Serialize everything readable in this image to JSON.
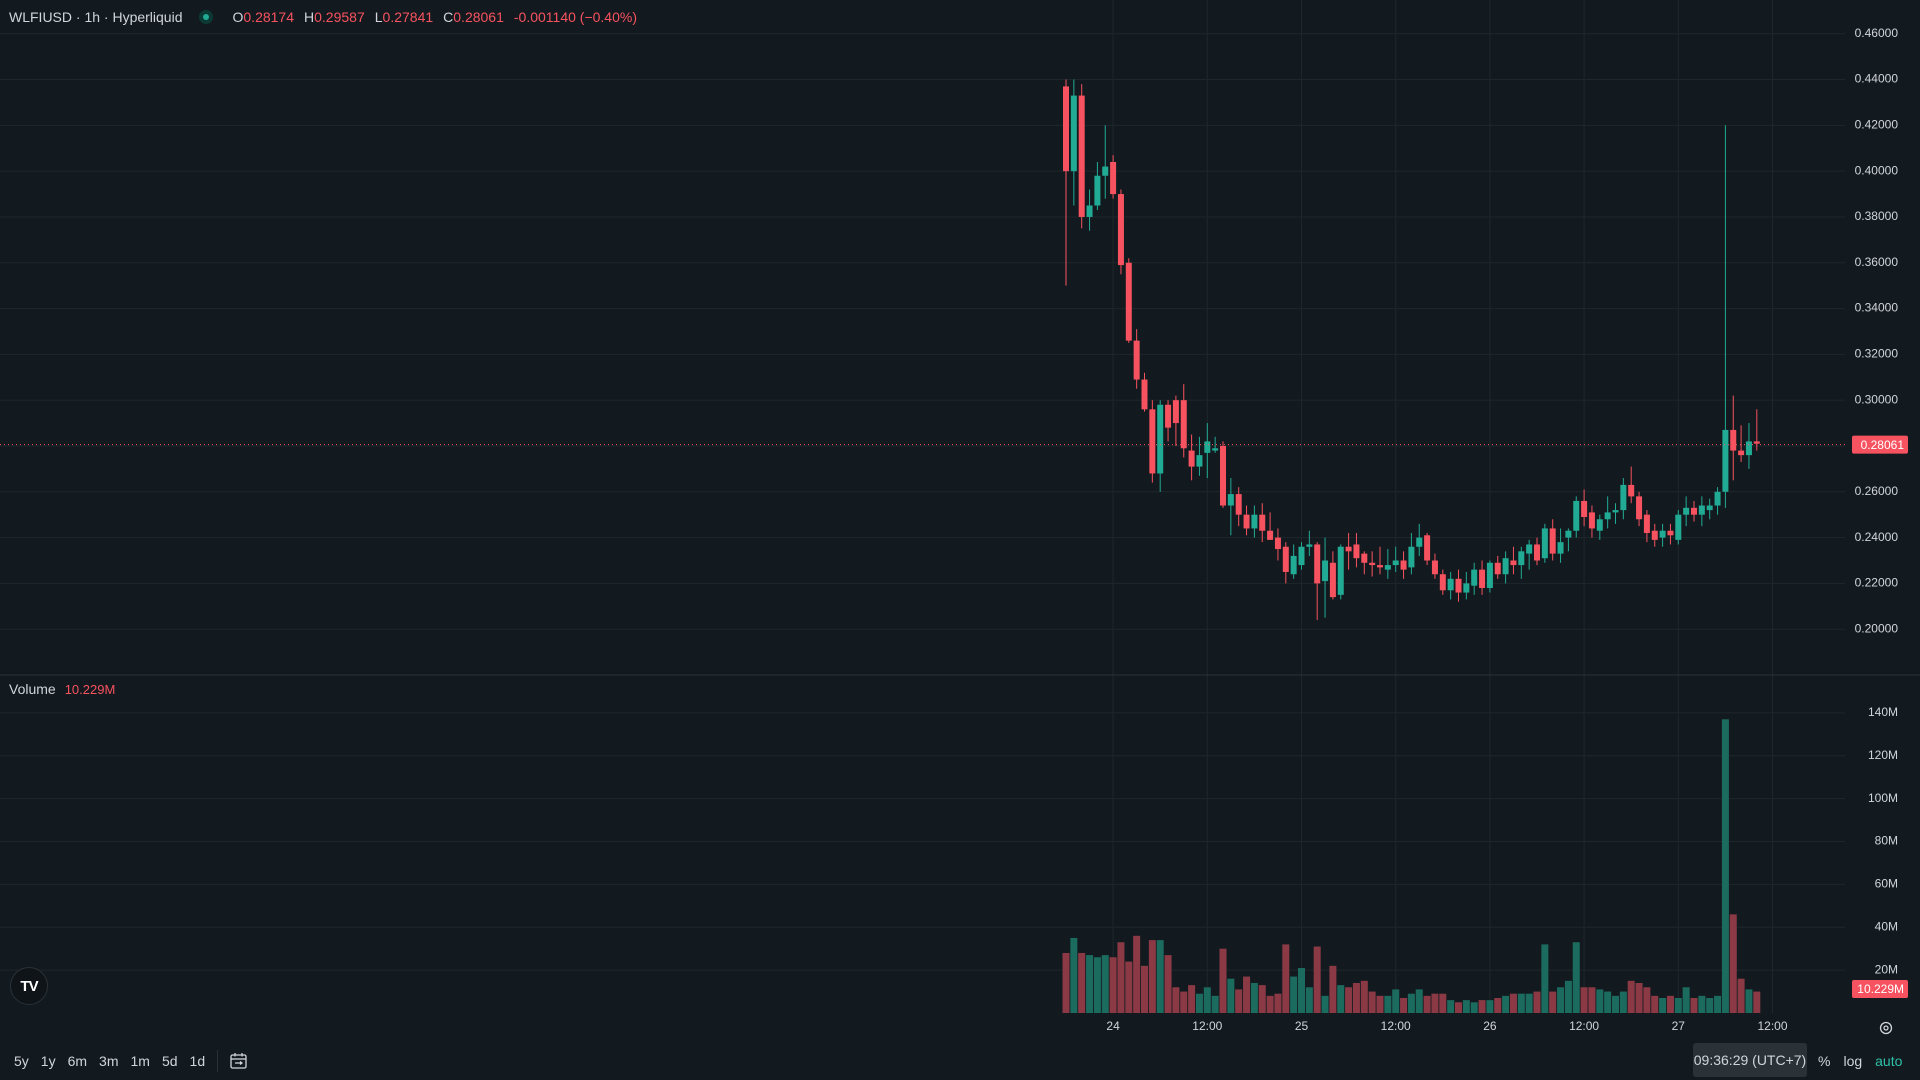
{
  "legend": {
    "symbol": "WLFIUSD · 1h · Hyperliquid",
    "o_label": "O",
    "o": "0.28174",
    "h_label": "H",
    "h": "0.29587",
    "l_label": "L",
    "l": "0.27841",
    "c_label": "C",
    "c": "0.28061",
    "change": "-0.001140 (−0.40%)"
  },
  "volume_legend": {
    "label": "Volume",
    "value": "10.229M"
  },
  "logo": {
    "text": "TV",
    "icon": "tradingview-logo-icon"
  },
  "ranges": [
    "5y",
    "1y",
    "6m",
    "3m",
    "1m",
    "5d",
    "1d"
  ],
  "clock": "09:36:29 (UTC+7)",
  "scale_buttons": {
    "percent": "%",
    "log": "log",
    "auto": "auto"
  },
  "colors": {
    "background": "#131a1f",
    "grid": "#1e272d",
    "up": "#22ab94",
    "down": "#f7525f",
    "up_volume": "#1b6b5f",
    "down_volume": "#8b3a45",
    "axis_text": "#d1d4dc",
    "accent": "#2dc0a8"
  },
  "chart_data": {
    "type": "candlestick",
    "symbol": "WLFIUSD",
    "interval": "1h",
    "exchange": "Hyperliquid",
    "price_axis": {
      "ticks": [
        0.2,
        0.22,
        0.24,
        0.26,
        0.28,
        0.3,
        0.32,
        0.34,
        0.36,
        0.38,
        0.4,
        0.42,
        0.44,
        0.46
      ],
      "tick_labels": [
        "0.20000",
        "0.22000",
        "0.24000",
        "0.26000",
        "0.28000",
        "0.30000",
        "0.32000",
        "0.34000",
        "0.36000",
        "0.38000",
        "0.40000",
        "0.42000",
        "0.44000",
        "0.46000"
      ],
      "range": [
        0.18,
        0.466
      ],
      "last_price": 0.28061,
      "last_price_label": "0.28061"
    },
    "volume_axis": {
      "ticks": [
        20,
        40,
        60,
        80,
        100,
        120,
        140
      ],
      "tick_labels": [
        "20M",
        "40M",
        "60M",
        "80M",
        "100M",
        "120M",
        "140M"
      ],
      "range": [
        0,
        146
      ],
      "last_volume_label": "10.229M"
    },
    "time_axis": {
      "labels": [
        {
          "label": "24",
          "bar": 6
        },
        {
          "label": "12:00",
          "bar": 18
        },
        {
          "label": "25",
          "bar": 30
        },
        {
          "label": "12:00",
          "bar": 42
        },
        {
          "label": "26",
          "bar": 54
        },
        {
          "label": "12:00",
          "bar": 66
        },
        {
          "label": "27",
          "bar": 78
        },
        {
          "label": "12:00",
          "bar": 90
        }
      ]
    },
    "grid": true,
    "candles": [
      [
        0.437,
        0.44,
        0.35,
        0.4,
        28
      ],
      [
        0.4,
        0.44,
        0.385,
        0.433,
        35
      ],
      [
        0.433,
        0.438,
        0.375,
        0.38,
        28
      ],
      [
        0.38,
        0.392,
        0.374,
        0.385,
        27
      ],
      [
        0.385,
        0.404,
        0.383,
        0.398,
        26
      ],
      [
        0.398,
        0.42,
        0.388,
        0.402,
        27
      ],
      [
        0.404,
        0.407,
        0.388,
        0.39,
        26
      ],
      [
        0.39,
        0.392,
        0.355,
        0.359,
        33
      ],
      [
        0.36,
        0.362,
        0.325,
        0.326,
        24
      ],
      [
        0.326,
        0.331,
        0.305,
        0.309,
        36
      ],
      [
        0.309,
        0.312,
        0.295,
        0.296,
        22
      ],
      [
        0.296,
        0.3,
        0.264,
        0.268,
        34
      ],
      [
        0.268,
        0.3,
        0.26,
        0.298,
        34
      ],
      [
        0.298,
        0.3,
        0.282,
        0.288,
        27
      ],
      [
        0.3,
        0.302,
        0.28,
        0.29,
        12
      ],
      [
        0.3,
        0.307,
        0.275,
        0.279,
        10
      ],
      [
        0.278,
        0.285,
        0.265,
        0.271,
        13
      ],
      [
        0.271,
        0.284,
        0.267,
        0.276,
        9
      ],
      [
        0.277,
        0.29,
        0.266,
        0.282,
        12
      ],
      [
        0.278,
        0.284,
        0.277,
        0.279,
        8
      ],
      [
        0.28,
        0.282,
        0.253,
        0.254,
        30
      ],
      [
        0.254,
        0.266,
        0.241,
        0.259,
        16
      ],
      [
        0.259,
        0.262,
        0.245,
        0.25,
        11
      ],
      [
        0.25,
        0.254,
        0.241,
        0.244,
        17
      ],
      [
        0.244,
        0.254,
        0.24,
        0.25,
        14
      ],
      [
        0.25,
        0.255,
        0.238,
        0.243,
        13
      ],
      [
        0.243,
        0.251,
        0.239,
        0.239,
        8
      ],
      [
        0.24,
        0.244,
        0.23,
        0.235,
        9
      ],
      [
        0.236,
        0.238,
        0.22,
        0.225,
        32
      ],
      [
        0.224,
        0.237,
        0.222,
        0.232,
        17
      ],
      [
        0.228,
        0.238,
        0.226,
        0.236,
        21
      ],
      [
        0.236,
        0.243,
        0.232,
        0.237,
        12
      ],
      [
        0.237,
        0.238,
        0.204,
        0.22,
        31
      ],
      [
        0.221,
        0.24,
        0.205,
        0.23,
        8
      ],
      [
        0.229,
        0.234,
        0.213,
        0.214,
        22
      ],
      [
        0.215,
        0.237,
        0.213,
        0.236,
        13
      ],
      [
        0.236,
        0.242,
        0.226,
        0.234,
        12
      ],
      [
        0.237,
        0.242,
        0.227,
        0.231,
        14
      ],
      [
        0.233,
        0.234,
        0.224,
        0.229,
        15
      ],
      [
        0.229,
        0.234,
        0.223,
        0.228,
        10
      ],
      [
        0.228,
        0.236,
        0.224,
        0.227,
        8
      ],
      [
        0.226,
        0.235,
        0.222,
        0.228,
        8
      ],
      [
        0.228,
        0.236,
        0.225,
        0.23,
        11
      ],
      [
        0.23,
        0.234,
        0.222,
        0.226,
        7
      ],
      [
        0.227,
        0.242,
        0.224,
        0.236,
        9
      ],
      [
        0.236,
        0.246,
        0.232,
        0.24,
        11
      ],
      [
        0.241,
        0.242,
        0.228,
        0.23,
        8
      ],
      [
        0.23,
        0.233,
        0.222,
        0.224,
        9
      ],
      [
        0.224,
        0.226,
        0.215,
        0.217,
        9
      ],
      [
        0.217,
        0.225,
        0.213,
        0.222,
        6
      ],
      [
        0.222,
        0.226,
        0.212,
        0.216,
        5
      ],
      [
        0.216,
        0.225,
        0.213,
        0.22,
        6
      ],
      [
        0.219,
        0.229,
        0.215,
        0.226,
        5
      ],
      [
        0.226,
        0.23,
        0.215,
        0.218,
        6
      ],
      [
        0.218,
        0.23,
        0.216,
        0.229,
        6
      ],
      [
        0.229,
        0.232,
        0.222,
        0.224,
        7
      ],
      [
        0.224,
        0.234,
        0.22,
        0.231,
        8
      ],
      [
        0.23,
        0.236,
        0.224,
        0.228,
        9
      ],
      [
        0.228,
        0.236,
        0.222,
        0.234,
        9
      ],
      [
        0.233,
        0.239,
        0.226,
        0.237,
        9
      ],
      [
        0.237,
        0.24,
        0.228,
        0.23,
        10
      ],
      [
        0.231,
        0.246,
        0.229,
        0.244,
        32
      ],
      [
        0.244,
        0.248,
        0.23,
        0.233,
        10
      ],
      [
        0.233,
        0.244,
        0.229,
        0.238,
        12
      ],
      [
        0.24,
        0.244,
        0.234,
        0.243,
        15
      ],
      [
        0.243,
        0.258,
        0.24,
        0.256,
        33
      ],
      [
        0.256,
        0.261,
        0.245,
        0.249,
        12
      ],
      [
        0.251,
        0.254,
        0.24,
        0.244,
        12
      ],
      [
        0.243,
        0.25,
        0.239,
        0.248,
        11
      ],
      [
        0.248,
        0.258,
        0.244,
        0.251,
        10
      ],
      [
        0.251,
        0.255,
        0.246,
        0.252,
        8
      ],
      [
        0.252,
        0.266,
        0.248,
        0.263,
        10
      ],
      [
        0.263,
        0.271,
        0.255,
        0.258,
        15
      ],
      [
        0.258,
        0.26,
        0.245,
        0.248,
        14
      ],
      [
        0.25,
        0.252,
        0.238,
        0.242,
        12
      ],
      [
        0.243,
        0.246,
        0.236,
        0.239,
        8
      ],
      [
        0.24,
        0.246,
        0.236,
        0.243,
        7
      ],
      [
        0.243,
        0.246,
        0.237,
        0.241,
        8
      ],
      [
        0.239,
        0.252,
        0.237,
        0.25,
        7
      ],
      [
        0.25,
        0.258,
        0.245,
        0.253,
        12
      ],
      [
        0.253,
        0.256,
        0.247,
        0.25,
        7
      ],
      [
        0.25,
        0.258,
        0.245,
        0.254,
        8
      ],
      [
        0.252,
        0.257,
        0.248,
        0.254,
        7
      ],
      [
        0.254,
        0.262,
        0.25,
        0.26,
        8
      ],
      [
        0.26,
        0.42,
        0.253,
        0.287,
        137
      ],
      [
        0.287,
        0.302,
        0.265,
        0.278,
        46
      ],
      [
        0.278,
        0.289,
        0.273,
        0.276,
        16
      ],
      [
        0.276,
        0.29,
        0.27,
        0.282,
        11
      ],
      [
        0.282,
        0.296,
        0.278,
        0.281,
        10
      ]
    ]
  }
}
